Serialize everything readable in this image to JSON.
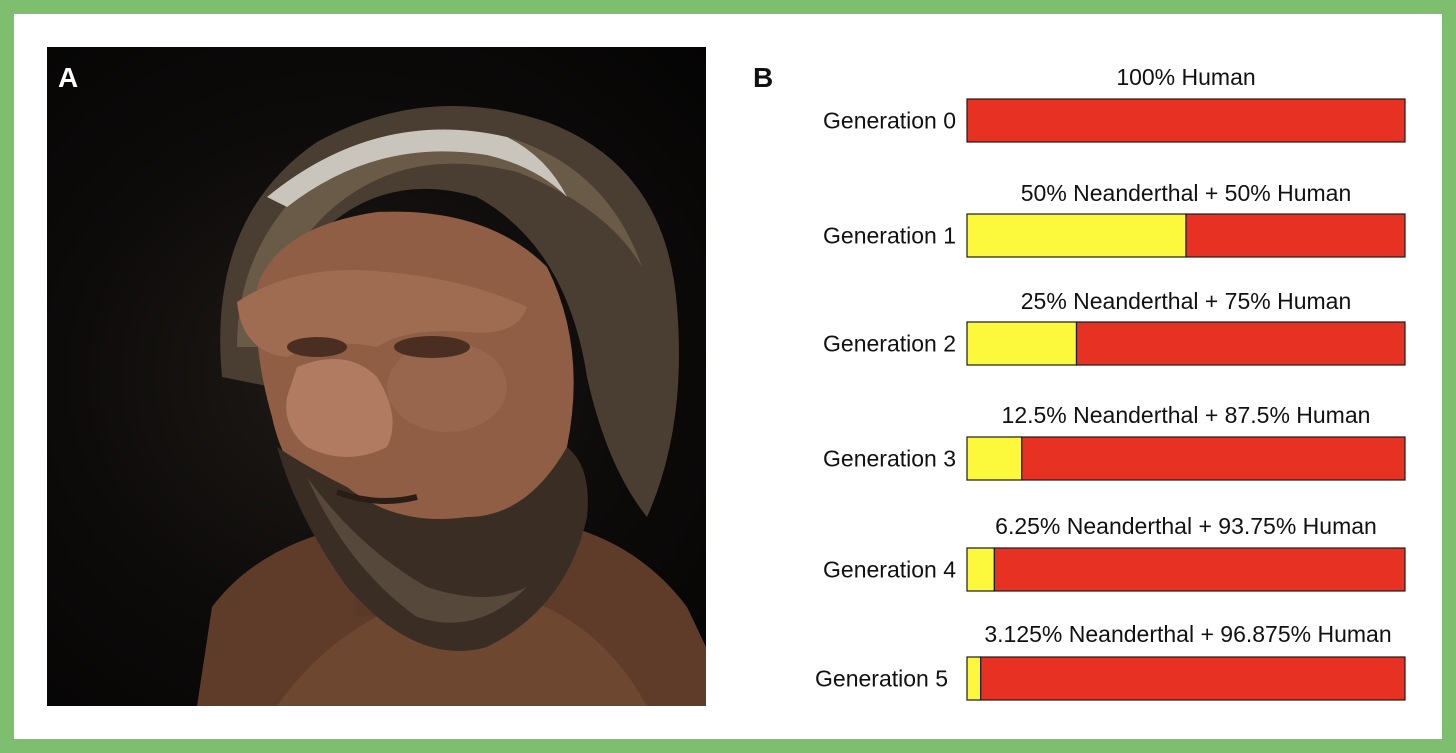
{
  "panel_a": {
    "letter": "A",
    "image": "photo of a Neanderthal man reconstruction with long hair, headband and beard"
  },
  "panel_b": {
    "letter": "B"
  },
  "chart_data": {
    "type": "bar",
    "orientation": "horizontal",
    "stacked": true,
    "categories": [
      "Generation 0",
      "Generation 1",
      "Generation 2",
      "Generation 3",
      "Generation 4",
      "Generation 5"
    ],
    "bar_labels": [
      "100% Human",
      "50% Neanderthal + 50% Human",
      "25% Neanderthal + 75% Human",
      "12.5% Neanderthal + 87.5% Human",
      "6.25% Neanderthal + 93.75% Human",
      "3.125% Neanderthal + 96.875% Human"
    ],
    "series": [
      {
        "name": "Neanderthal",
        "color": "#fcf93d",
        "values": [
          0,
          50,
          25,
          12.5,
          6.25,
          3.125
        ]
      },
      {
        "name": "Human",
        "color": "#e73223",
        "values": [
          100,
          50,
          75,
          87.5,
          93.75,
          96.875
        ]
      }
    ],
    "xlim": [
      0,
      100
    ],
    "grid": false,
    "legend": "none"
  }
}
